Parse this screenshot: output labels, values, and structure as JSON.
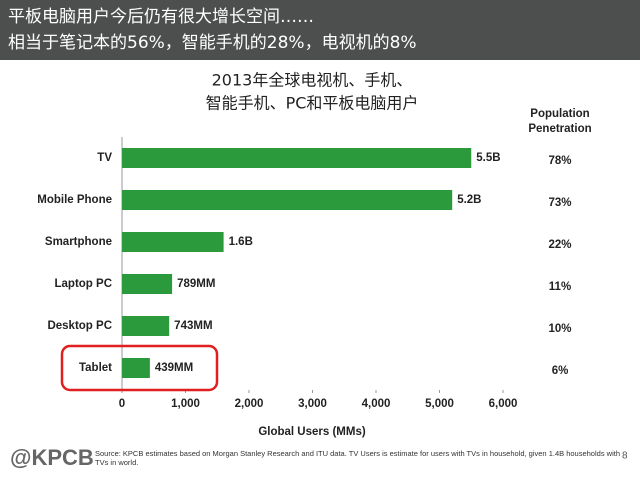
{
  "header": {
    "line1": "平板电脑用户今后仍有很大增长空间……",
    "line2": "相当于笔记本的56%，智能手机的28%，电视机的8%"
  },
  "chart_data": {
    "type": "bar",
    "orientation": "horizontal",
    "title": [
      "2013年全球电视机、手机、",
      "智能手机、PC和平板电脑用户"
    ],
    "categories": [
      "TV",
      "Mobile Phone",
      "Smartphone",
      "Laptop PC",
      "Desktop PC",
      "Tablet"
    ],
    "values": [
      5500,
      5200,
      1600,
      789,
      743,
      439
    ],
    "value_labels": [
      "5.5B",
      "5.2B",
      "1.6B",
      "789MM",
      "743MM",
      "439MM"
    ],
    "color": "#2a9a3c",
    "xlim": [
      0,
      6000
    ],
    "xticks": [
      0,
      {
        "value": 1000,
        "label": "1,000"
      },
      {
        "value": 2000,
        "label": "2,000"
      },
      {
        "value": 3000,
        "label": "3,000"
      },
      {
        "value": 4000,
        "label": "4,000"
      },
      {
        "value": 5000,
        "label": "5,000"
      },
      {
        "value": 6000,
        "label": "6,000"
      }
    ],
    "xlabel": "Global Users (MMs)",
    "highlight": "Tablet",
    "highlight_color": "#e02020",
    "penetration": {
      "title": [
        "Population",
        "Penetration"
      ],
      "labels": [
        "78%",
        "73%",
        "22%",
        "11%",
        "10%",
        "6%"
      ]
    }
  },
  "footer": {
    "logo": "@KPCB",
    "source": [
      "Source: KPCB estimates based on Morgan Stanley Research and ITU data. TV Users is estimate for users with TVs in household, given 1.4B households with",
      "TVs in world."
    ],
    "page": "8"
  }
}
